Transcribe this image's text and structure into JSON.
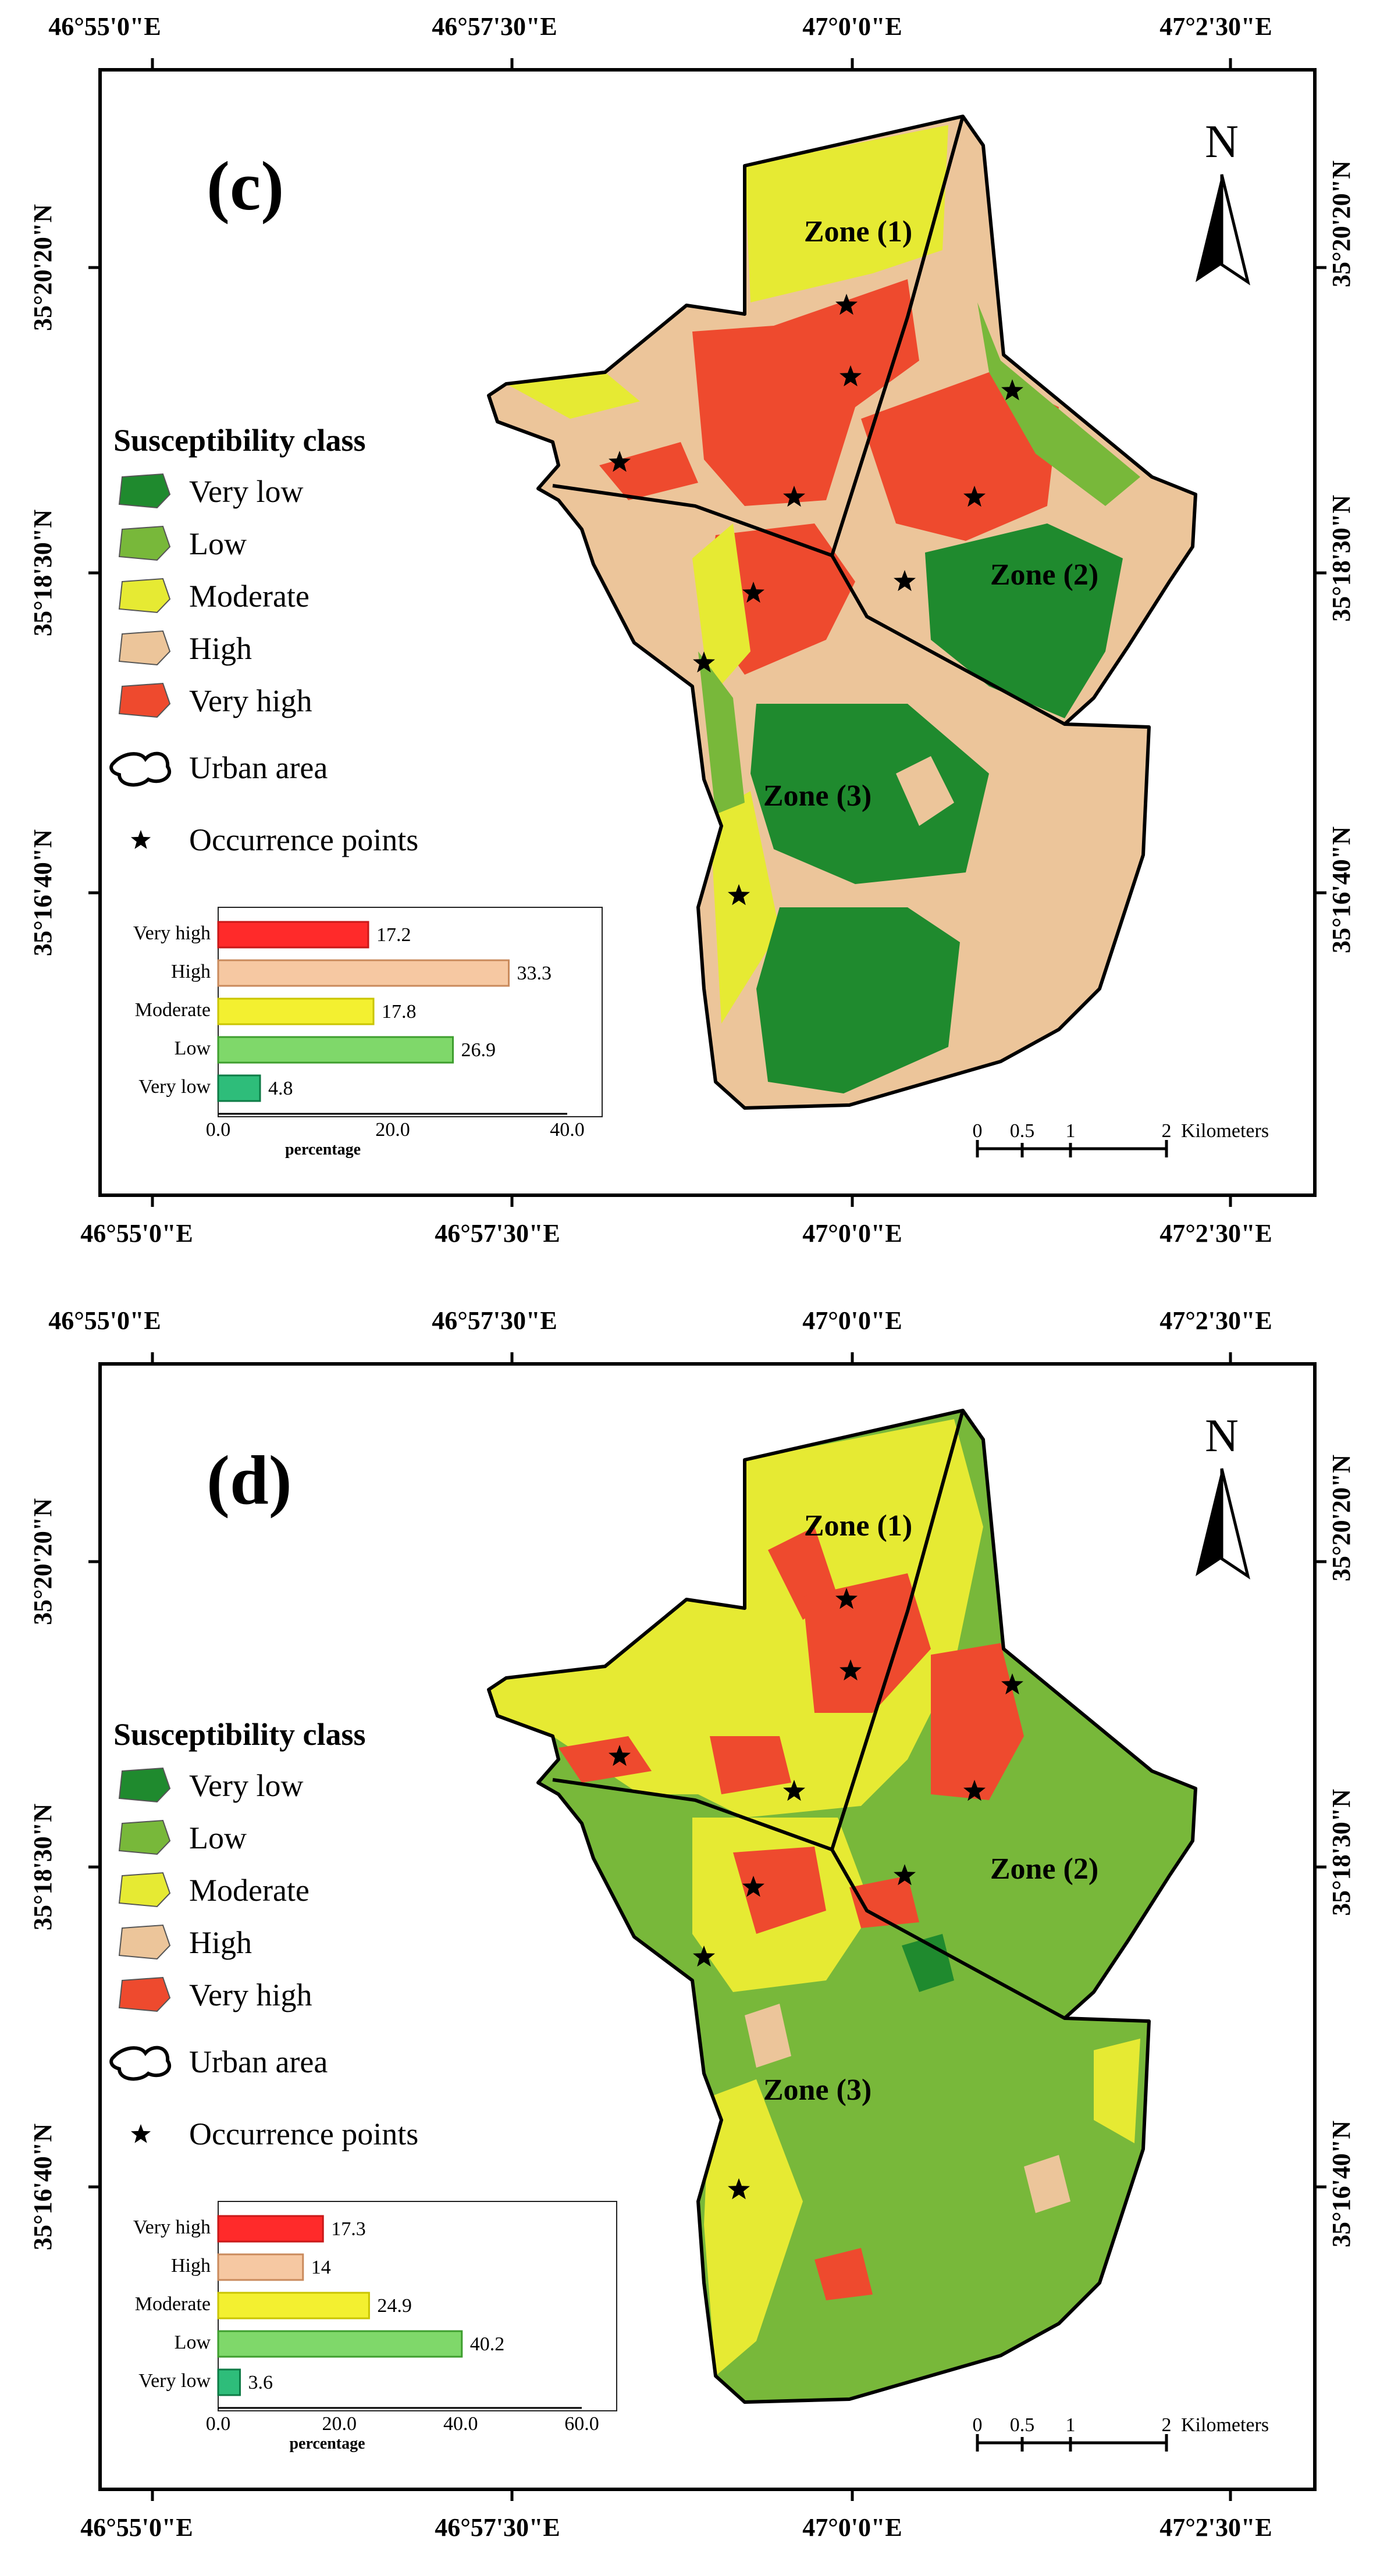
{
  "colors": {
    "very_low": "#1f8a2e",
    "low": "#78b83a",
    "moderate": "#e6ea33",
    "high": "#ecc59a",
    "very_high": "#ee4a2e",
    "frame": "#000000"
  },
  "coords": {
    "top": [
      "46°55'0\"E",
      "46°57'30\"E",
      "47°0'0\"E",
      "47°2'30\"E"
    ],
    "bottom": [
      "46°55'0\"E",
      "46°57'30\"E",
      "47°0'0\"E",
      "47°2'30\"E"
    ],
    "left": [
      "35°20'20\"N",
      "35°18'30\"N",
      "35°16'40\"N"
    ],
    "right": [
      "35°20'20\"N",
      "35°18'30\"N",
      "35°16'40\"N"
    ]
  },
  "north": "N",
  "zones": [
    "Zone (1)",
    "Zone (2)",
    "Zone (3)"
  ],
  "legend": {
    "title": "Susceptibility class",
    "classes": [
      "Very low",
      "Low",
      "Moderate",
      "High",
      "Very high"
    ],
    "urban": "Urban area",
    "points": "Occurrence points"
  },
  "scale": {
    "ticks": [
      "0",
      "0.5",
      "1",
      "2"
    ],
    "unit": "Kilometers"
  },
  "panels": {
    "c": {
      "label": "(c)",
      "chart_data": {
        "type": "bar",
        "orientation": "horizontal",
        "categories": [
          "Very high",
          "High",
          "Moderate",
          "Low",
          "Very low"
        ],
        "values": [
          17.2,
          33.3,
          17.8,
          26.9,
          4.8
        ],
        "value_labels": [
          "17.2",
          "33.3",
          "17.8",
          "26.9",
          "4.8"
        ],
        "xlabel": "percentage",
        "xlim": [
          0,
          40
        ],
        "xticks": [
          "0.0",
          "20.0",
          "40.0"
        ]
      }
    },
    "d": {
      "label": "(d)",
      "chart_data": {
        "type": "bar",
        "orientation": "horizontal",
        "categories": [
          "Very high",
          "High",
          "Moderate",
          "Low",
          "Very low"
        ],
        "values": [
          17.3,
          14,
          24.9,
          40.2,
          3.6
        ],
        "value_labels": [
          "17.3",
          "14",
          "24.9",
          "40.2",
          "3.6"
        ],
        "xlabel": "percentage",
        "xlim": [
          0,
          60
        ],
        "xticks": [
          "0.0",
          "20.0",
          "40.0",
          "60.0"
        ]
      }
    }
  }
}
